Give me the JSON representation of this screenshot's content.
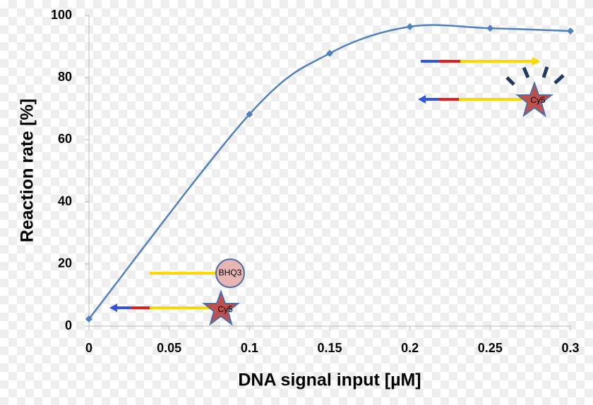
{
  "chart_data": {
    "type": "line",
    "x_label": "DNA signal input [µM]",
    "y_label": "Reaction rate [%]",
    "x": [
      0,
      0.1,
      0.15,
      0.2,
      0.25,
      0.3
    ],
    "series": [
      {
        "color": "#4f81bd",
        "values": [
          2.3,
          68.2,
          87.8,
          96.4,
          95.9,
          95.0
        ]
      }
    ],
    "xlim": [
      0,
      0.3
    ],
    "xticks": [
      0,
      0.05,
      0.1,
      0.15,
      0.2,
      0.25,
      0.3
    ],
    "ylim": [
      0,
      100
    ],
    "yticks": [
      0,
      20,
      40,
      60,
      80,
      100
    ],
    "smooth": true,
    "annotations": [
      "BHQ3",
      "Cy5",
      "Cy5"
    ]
  }
}
